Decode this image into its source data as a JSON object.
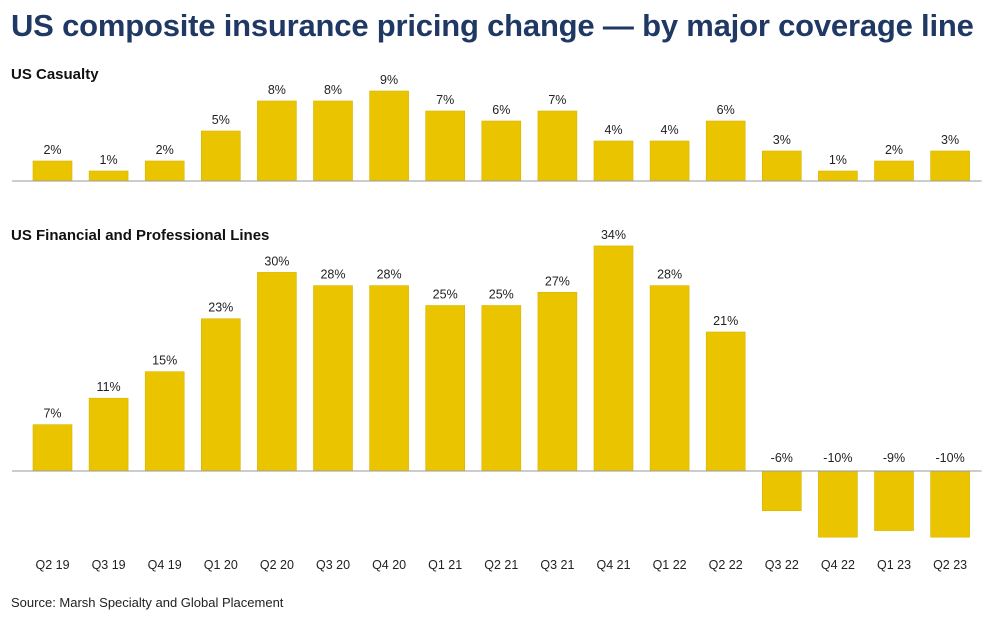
{
  "title": "US composite insurance pricing change — by major coverage line",
  "source": "Source: Marsh Specialty and Global Placement",
  "colors": {
    "bar": "#ebc400",
    "bar_edge": "#d9b400",
    "baseline": "#9a9a9a",
    "title": "#1f3864"
  },
  "chart_data": [
    {
      "type": "bar",
      "title": "US Casualty",
      "categories": [
        "Q2 19",
        "Q3 19",
        "Q4 19",
        "Q1 20",
        "Q2 20",
        "Q3 20",
        "Q4 20",
        "Q1 21",
        "Q2 21",
        "Q3 21",
        "Q4 21",
        "Q1 22",
        "Q2 22",
        "Q3 22",
        "Q4 22",
        "Q1 23",
        "Q2 23"
      ],
      "values": [
        2,
        1,
        2,
        5,
        8,
        8,
        9,
        7,
        6,
        7,
        4,
        4,
        6,
        3,
        1,
        2,
        3
      ],
      "labels": [
        "2%",
        "1%",
        "2%",
        "5%",
        "8%",
        "8%",
        "9%",
        "7%",
        "6%",
        "7%",
        "4%",
        "4%",
        "6%",
        "3%",
        "1%",
        "2%",
        "3%"
      ],
      "unit": "%",
      "grid": false
    },
    {
      "type": "bar",
      "title": "US Financial and Professional Lines",
      "categories": [
        "Q2 19",
        "Q3 19",
        "Q4 19",
        "Q1 20",
        "Q2 20",
        "Q3 20",
        "Q4 20",
        "Q1 21",
        "Q2 21",
        "Q3 21",
        "Q4 21",
        "Q1 22",
        "Q2 22",
        "Q3 22",
        "Q4 22",
        "Q1 23",
        "Q2 23"
      ],
      "values": [
        7,
        11,
        15,
        23,
        30,
        28,
        28,
        25,
        25,
        27,
        34,
        28,
        21,
        -6,
        -10,
        -9,
        -10
      ],
      "labels": [
        "7%",
        "11%",
        "15%",
        "23%",
        "30%",
        "28%",
        "28%",
        "25%",
        "25%",
        "27%",
        "34%",
        "28%",
        "21%",
        "-6%",
        "-10%",
        "-9%",
        "-10%"
      ],
      "unit": "%",
      "grid": false
    }
  ]
}
